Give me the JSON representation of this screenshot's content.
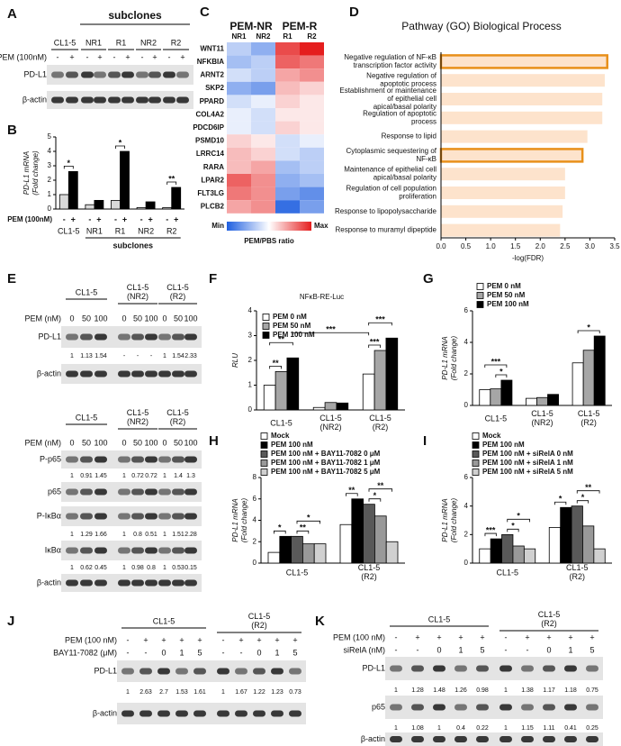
{
  "blots": [
    {
      "label": "A",
      "group_title": "subclones",
      "lanes_header": [
        "CL1-5",
        "NR1",
        "R1",
        "NR2",
        "R2"
      ],
      "conditions": [
        {
          "name": "PEM (100nM)",
          "values": [
            "-",
            "+",
            "-",
            "+",
            "-",
            "+",
            "-",
            "+",
            "-",
            "+"
          ]
        }
      ],
      "rows": [
        {
          "name": "PD-L1"
        },
        {
          "name": "β-actin"
        }
      ]
    },
    {
      "label": "E",
      "lanes_header": [
        "CL1-5",
        "CL1-5 (NR2)",
        "CL1-5 (R2)"
      ],
      "conditions": [
        {
          "name": "PEM (nM)",
          "values": [
            0,
            50,
            100,
            0,
            50,
            100,
            0,
            50,
            100
          ]
        }
      ],
      "rows": [
        {
          "name": "PD-L1",
          "quant": [
            1,
            1.13,
            1.54,
            "-",
            "-",
            "-",
            1,
            1.54,
            2.33
          ]
        },
        {
          "name": "β-actin"
        }
      ]
    },
    {
      "lanes_header": [
        "CL1-5",
        "CL1-5 (NR2)",
        "CL1-5 (R2)"
      ],
      "conditions": [
        {
          "name": "PEM (nM)",
          "values": [
            0,
            50,
            100,
            0,
            50,
            100,
            0,
            50,
            100
          ]
        }
      ],
      "rows": [
        {
          "name": "P-p65",
          "quant": [
            1,
            0.91,
            1.45,
            1,
            0.72,
            0.72,
            1,
            1.4,
            1.3
          ]
        },
        {
          "name": "p65"
        },
        {
          "name": "P-IκBα",
          "quant": [
            1,
            1.29,
            1.66,
            1,
            0.8,
            0.51,
            1,
            1.51,
            2.28
          ]
        },
        {
          "name": "IκBα",
          "quant": [
            1,
            0.62,
            0.45,
            1,
            0.98,
            0.8,
            1,
            0.53,
            0.15
          ]
        },
        {
          "name": "β-actin"
        }
      ]
    },
    {
      "label": "J",
      "lanes_header": [
        "CL1-5",
        "CL1-5 (R2)"
      ],
      "conditions": [
        {
          "name": "PEM (100 nM)",
          "values": [
            "-",
            "+",
            "+",
            "+",
            "+",
            "-",
            "+",
            "+",
            "+",
            "+"
          ]
        },
        {
          "name": "BAY11-7082 (μM)",
          "values": [
            "-",
            "-",
            0,
            1,
            5,
            "-",
            "-",
            0,
            1,
            5
          ]
        }
      ],
      "rows": [
        {
          "name": "PD-L1",
          "quant": [
            1,
            2.63,
            2.7,
            1.53,
            1.61,
            1,
            1.67,
            1.22,
            1.23,
            0.73
          ]
        },
        {
          "name": "β-actin"
        }
      ]
    },
    {
      "label": "K",
      "lanes_header": [
        "CL1-5",
        "CL1-5 (R2)"
      ],
      "conditions": [
        {
          "name": "PEM (100 nM)",
          "values": [
            "-",
            "+",
            "+",
            "+",
            "+",
            "-",
            "+",
            "+",
            "+",
            "+"
          ]
        },
        {
          "name": "siRelA  (nM)",
          "values": [
            "-",
            "-",
            0,
            1,
            5,
            "-",
            "-",
            0,
            1,
            5
          ]
        }
      ],
      "rows": [
        {
          "name": "PD-L1",
          "quant": [
            1,
            1.28,
            1.48,
            1.26,
            0.98,
            1,
            1.38,
            1.17,
            1.18,
            0.75
          ]
        },
        {
          "name": "p65",
          "quant": [
            1,
            1.08,
            1,
            0.4,
            0.22,
            1,
            1.15,
            1.11,
            0.41,
            0.25
          ]
        },
        {
          "name": "β-actin"
        }
      ]
    }
  ],
  "chart_data": [
    {
      "type": "bar",
      "label": "B",
      "y_label": [
        "PD-L1 mRNA",
        "(Fold change)"
      ],
      "x_label": "PEM (100nM)",
      "group_label": "subclones",
      "categories": [
        "CL1-5",
        "NR1",
        "R1",
        "NR2",
        "R2"
      ],
      "series": [
        {
          "name": "-",
          "color": "#d9d9d9",
          "values": [
            1.0,
            0.3,
            0.6,
            0.1,
            0.1
          ]
        },
        {
          "name": "+",
          "color": "#000000",
          "values": [
            2.6,
            0.6,
            4.0,
            0.5,
            1.5
          ]
        }
      ],
      "ylim": [
        0,
        5
      ],
      "yticks": [
        0,
        1,
        2,
        3,
        4,
        5
      ],
      "annotations": [
        "*",
        "*",
        "**"
      ]
    },
    {
      "type": "heatmap",
      "label": "C",
      "groups": [
        "PEM-NR",
        "PEM-R"
      ],
      "columns": [
        "NR1",
        "NR2",
        "R1",
        "R2"
      ],
      "rows": [
        "WNT11",
        "NFKBIA",
        "ARNT2",
        "SKP2",
        "PPARD",
        "COL4A2",
        "PDCD6IP",
        "PSMD10",
        "LRRC14",
        "RARA",
        "LPAR2",
        "FLT3LG",
        "PLCB2"
      ],
      "values": [
        [
          -0.3,
          -0.5,
          0.8,
          1.0
        ],
        [
          -0.4,
          -0.3,
          0.7,
          0.6
        ],
        [
          -0.2,
          -0.3,
          0.4,
          0.5
        ],
        [
          -0.5,
          -0.6,
          0.3,
          0.2
        ],
        [
          -0.2,
          -0.1,
          0.2,
          0.1
        ],
        [
          -0.1,
          -0.2,
          0.1,
          0.1
        ],
        [
          -0.1,
          -0.2,
          0.2,
          0.1
        ],
        [
          0.2,
          0.1,
          -0.2,
          -0.1
        ],
        [
          0.3,
          0.2,
          -0.2,
          -0.3
        ],
        [
          0.3,
          0.4,
          -0.4,
          -0.3
        ],
        [
          0.7,
          0.5,
          -0.5,
          -0.4
        ],
        [
          0.6,
          0.5,
          -0.6,
          -0.7
        ],
        [
          0.4,
          0.5,
          -0.9,
          -0.6
        ]
      ],
      "colormap": [
        "#1f5fe0",
        "#ffffff",
        "#e51e1e"
      ],
      "legend_min": "Min",
      "legend_max": "Max",
      "legend_title": "PEM/PBS ratio"
    },
    {
      "type": "hbar",
      "label": "D",
      "title": "Pathway (GO) Biological Process",
      "categories": [
        "Negative regulation of NF-κB transcription factor activity",
        "Negative regulation of apoptotic process",
        "Establishment or maintenance of epithelial cell apical/basal polarity",
        "Regulation of apoptotic process",
        "Response to lipid",
        "Cytoplasmic sequestering of NF-κB",
        "Maintenance of epithelial cell apical/basal polarity",
        "Regulation of cell population proliferation",
        "Response to lipopolysaccharide",
        "Response to muramyl dipeptide"
      ],
      "values": [
        3.35,
        3.3,
        3.25,
        3.25,
        2.95,
        2.85,
        2.5,
        2.5,
        2.45,
        2.4
      ],
      "color": "#fde3cc",
      "highlighted": [
        true,
        false,
        false,
        false,
        false,
        true,
        false,
        false,
        false,
        false
      ],
      "highlight_color": "#e8901a",
      "xlim": [
        0,
        3.5
      ],
      "xticks": [
        {
          "value": 0,
          "label": "0.0"
        },
        0.5,
        {
          "value": 1,
          "label": "1.0"
        },
        1.5,
        {
          "value": 2,
          "label": "2.0"
        },
        2.5,
        {
          "value": 3,
          "label": "3.0"
        },
        3.5
      ],
      "x_label": "-log(FDR)"
    },
    {
      "type": "bar",
      "label": "F",
      "title": "NFκB-RE-Luc",
      "y_label": [
        "RLU"
      ],
      "categories": [
        "CL1-5",
        "CL1-5 (NR2)",
        "CL1-5 (R2)"
      ],
      "series": [
        {
          "name": "PEM 0 nM",
          "color": "#ffffff",
          "values": [
            1.0,
            0.1,
            1.45
          ]
        },
        {
          "name": "PEM 50 nM",
          "color": "#a6a6a6",
          "values": [
            1.55,
            0.3,
            2.4
          ]
        },
        {
          "name": "PEM 100 nM",
          "color": "#000000",
          "values": [
            2.1,
            0.28,
            2.9
          ]
        }
      ],
      "ylim": [
        0,
        4
      ],
      "yticks": [
        0,
        1,
        2,
        3,
        4
      ],
      "legend": "upper left",
      "annotations": [
        "**",
        "**",
        "***",
        "***",
        "***"
      ]
    },
    {
      "type": "bar",
      "label": "G",
      "y_label": [
        "PD-L1 mRNA",
        "(Fold change)"
      ],
      "categories": [
        "CL1-5",
        "CL1-5 (NR2)",
        "CL1-5 (R2)"
      ],
      "series": [
        {
          "name": "PEM 0 nM",
          "color": "#ffffff",
          "values": [
            1.0,
            0.45,
            2.7
          ]
        },
        {
          "name": "PEM 50 nM",
          "color": "#a6a6a6",
          "values": [
            1.05,
            0.5,
            3.5
          ]
        },
        {
          "name": "PEM 100 nM",
          "color": "#000000",
          "values": [
            1.6,
            0.7,
            4.4
          ]
        }
      ],
      "ylim": [
        0,
        6
      ],
      "yticks": [
        0,
        2,
        4,
        6
      ],
      "legend": "upper left",
      "annotations": [
        "***",
        "*",
        "*"
      ]
    },
    {
      "type": "bar",
      "label": "H",
      "y_label": [
        "PD-L1 mRNA",
        "(Fold change)"
      ],
      "categories": [
        "CL1-5",
        "CL1-5 (R2)"
      ],
      "series": [
        {
          "name": "Mock",
          "color": "#ffffff",
          "values": [
            1.0,
            3.6
          ]
        },
        {
          "name": "PEM 100 nM",
          "color": "#000000",
          "values": [
            2.5,
            6.0
          ]
        },
        {
          "name": "PEM 100 nM + BAY11-7082 0 μM",
          "color": "#595959",
          "values": [
            2.5,
            5.5
          ]
        },
        {
          "name": "PEM 100 nM + BAY11-7082 1 μM",
          "color": "#999999",
          "values": [
            1.8,
            4.4
          ]
        },
        {
          "name": "PEM 100 nM + BAY11-7082 5 μM",
          "color": "#d0d0d0",
          "values": [
            1.8,
            2.0
          ]
        }
      ],
      "ylim": [
        0,
        8
      ],
      "yticks": [
        0,
        2,
        4,
        6,
        8
      ],
      "legend": "above",
      "annotations": [
        "*",
        "**",
        "*",
        "**",
        "*",
        "**"
      ]
    },
    {
      "type": "bar",
      "label": "I",
      "y_label": [
        "PD-L1 mRNA",
        "(Fold change)"
      ],
      "categories": [
        "CL1-5",
        "CL1-5 (R2)"
      ],
      "series": [
        {
          "name": "Mock",
          "color": "#ffffff",
          "values": [
            1.0,
            2.5
          ]
        },
        {
          "name": "PEM 100 nM",
          "color": "#000000",
          "values": [
            1.7,
            3.9
          ]
        },
        {
          "name": "PEM 100 nM + siRelA 0 nM",
          "color": "#595959",
          "values": [
            2.0,
            4.0
          ]
        },
        {
          "name": "PEM 100 nM + siRelA 1 nM",
          "color": "#999999",
          "values": [
            1.2,
            2.6
          ]
        },
        {
          "name": "PEM 100 nM + siRelA 5 nM",
          "color": "#d0d0d0",
          "values": [
            1.0,
            1.0
          ]
        }
      ],
      "ylim": [
        0,
        6
      ],
      "yticks": [
        0,
        2,
        4,
        6
      ],
      "legend": "above",
      "annotations": [
        "***",
        "*",
        "*",
        "*",
        "*",
        "**"
      ]
    }
  ]
}
